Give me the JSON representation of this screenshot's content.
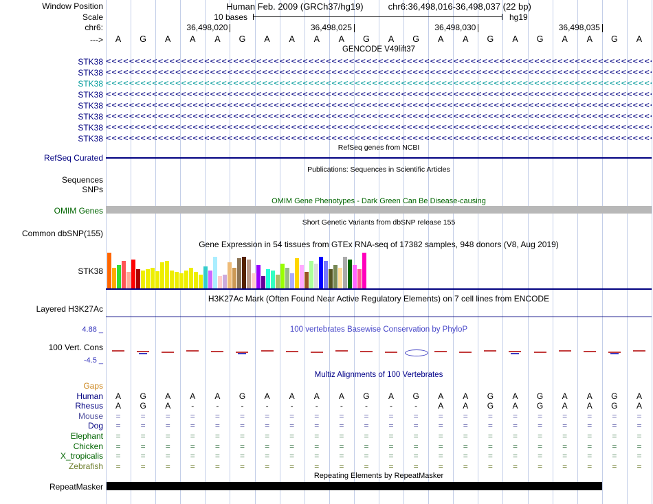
{
  "colors": {
    "navy": "#000080",
    "teal_transcript": "#009a9a",
    "dark_green": "#006400",
    "omim_bar_gray": "#b8b8b8",
    "gridline_blue": "#c3cee8",
    "phylop_title_blue": "#4646c8",
    "phylop_dash_red": "#c23a3a",
    "phylop_mark_blue": "#3a3ac2",
    "gaps_orange": "#cc8822",
    "repeat_black": "#000000"
  },
  "header": {
    "window_position_label": "Window Position",
    "assembly_title": "Human Feb. 2009 (GRCh37/hg19)",
    "position_title": "chr6:36,498,016-36,498,037 (22 bp)",
    "scale_label": "Scale",
    "scale_text": "10 bases",
    "assembly_short": "hg19",
    "chrom_label": "chr6:",
    "strand_label": "--->",
    "coordinate_ticks": [
      {
        "label": "36,498,020",
        "column": 4
      },
      {
        "label": "36,498,025",
        "column": 9
      },
      {
        "label": "36,498,030",
        "column": 14
      },
      {
        "label": "36,498,035",
        "column": 19
      }
    ],
    "bases": [
      "A",
      "G",
      "A",
      "A",
      "A",
      "G",
      "A",
      "A",
      "A",
      "A",
      "G",
      "A",
      "G",
      "A",
      "A",
      "G",
      "A",
      "G",
      "A",
      "A",
      "G",
      "A"
    ]
  },
  "gencode": {
    "title": "GENCODE V49lift37",
    "arrow_char": "<",
    "transcripts": [
      {
        "name": "STK38",
        "color": "#000080"
      },
      {
        "name": "STK38",
        "color": "#000080"
      },
      {
        "name": "STK38",
        "color": "#009a9a"
      },
      {
        "name": "STK38",
        "color": "#000080"
      },
      {
        "name": "STK38",
        "color": "#000080"
      },
      {
        "name": "STK38",
        "color": "#000080"
      },
      {
        "name": "STK38",
        "color": "#000080"
      },
      {
        "name": "STK38",
        "color": "#000080"
      }
    ]
  },
  "refseq": {
    "title": "RefSeq genes from NCBI",
    "label": "RefSeq Curated"
  },
  "publications": {
    "title": "Publications: Sequences in Scientific Articles",
    "sequences_label": "Sequences",
    "snps_label": "SNPs"
  },
  "omim": {
    "title": "OMIM Gene Phenotypes - Dark Green Can Be Disease-causing",
    "label": "OMIM Genes"
  },
  "dbsnp": {
    "title": "Short Genetic Variants from dbSNP release 155",
    "label": "Common dbSNP(155)"
  },
  "gtex": {
    "title": "Gene Expression in 54 tissues from GTEx RNA-seq of 17382 samples, 948 donors (V8, Aug 2019)",
    "label": "STK38"
  },
  "h3k27ac": {
    "title": "H3K27Ac Mark (Often Found Near Active Regulatory Elements) on 7 cell lines from ENCODE",
    "label": "Layered H3K27Ac"
  },
  "conservation": {
    "title": "100 vertebrates Basewise Conservation by PhyloP",
    "label": "100 Vert. Cons",
    "max_label": "4.88 _",
    "min_label": "-4.5 _",
    "blue_mark_columns": [
      1,
      5,
      16,
      20
    ],
    "lens_column": 12
  },
  "multiz": {
    "title": "Multiz Alignments of 100 Vertebrates",
    "species": [
      {
        "name": "Gaps",
        "label_color": "#cc8822"
      },
      {
        "name": "Human",
        "label_color": "#000080",
        "cell_color": "#000000",
        "cells": [
          "A",
          "G",
          "A",
          "A",
          "A",
          "G",
          "A",
          "A",
          "A",
          "A",
          "G",
          "A",
          "G",
          "A",
          "A",
          "G",
          "A",
          "G",
          "A",
          "A",
          "G",
          "A"
        ]
      },
      {
        "name": "Rhesus",
        "label_color": "#000080",
        "cell_color": "#000000",
        "cells": [
          "A",
          "G",
          "A",
          "-",
          "-",
          "-",
          "-",
          "-",
          "-",
          "-",
          "-",
          "-",
          "-",
          "A",
          "A",
          "G",
          "A",
          "G",
          "A",
          "A",
          "G",
          "A"
        ]
      },
      {
        "name": "Mouse",
        "label_color": "#50509e",
        "cell_color": "#6868b0",
        "cells_repeat": "="
      },
      {
        "name": "Dog",
        "label_color": "#000080",
        "cell_color": "#6868b0",
        "cells_repeat": "="
      },
      {
        "name": "Elephant",
        "label_color": "#006400",
        "cell_color": "#55885f",
        "cells_repeat": "="
      },
      {
        "name": "Chicken",
        "label_color": "#006400",
        "cell_color": "#55885f",
        "cells_repeat": "="
      },
      {
        "name": "X_tropicalis",
        "label_color": "#006400",
        "cell_color": "#55885f",
        "cells_repeat": "="
      },
      {
        "name": "Zebrafish",
        "label_color": "#708030",
        "cell_color": "#708030",
        "cells_repeat": "="
      }
    ]
  },
  "repeats": {
    "title": "Repeating Elements by RepeatMasker",
    "label": "RepeatMasker"
  },
  "chart_data": {
    "type": "bar",
    "title": "Gene Expression in 54 tissues from GTEx RNA-seq of 17382 samples, 948 donors (V8, Aug 2019)",
    "gene": "STK38",
    "ylim": [
      0,
      55
    ],
    "values": [
      52,
      30,
      34,
      40,
      24,
      42,
      28,
      26,
      28,
      30,
      25,
      38,
      40,
      26,
      24,
      22,
      26,
      30,
      24,
      20,
      32,
      26,
      46,
      18,
      20,
      38,
      30,
      44,
      46,
      42,
      22,
      34,
      18,
      28,
      26,
      20,
      36,
      30,
      22,
      44,
      34,
      24,
      40,
      36,
      46,
      40,
      28,
      34,
      30,
      46,
      42,
      34,
      28,
      52
    ],
    "colors": [
      "#FF6600",
      "#FFAA00",
      "#33DD33",
      "#FF5555",
      "#FFAA99",
      "#FF0000",
      "#AA0000",
      "#EEEE00",
      "#EEEE00",
      "#EEEE00",
      "#EEEE00",
      "#EEEE00",
      "#EEEE00",
      "#EEEE00",
      "#EEEE00",
      "#EEEE00",
      "#EEEE00",
      "#EEEE00",
      "#EEEE00",
      "#EEEE00",
      "#33CCCC",
      "#CC66FF",
      "#AAEEFF",
      "#FFCCCC",
      "#CCAADD",
      "#EEBB77",
      "#CC9955",
      "#8B7355",
      "#552200",
      "#BB9988",
      "#FFCCCC",
      "#9900FF",
      "#660099",
      "#22FFDD",
      "#33FFC2",
      "#AABB66",
      "#99FF00",
      "#99BB88",
      "#AAAAFF",
      "#FFD700",
      "#FFAAFF",
      "#995522",
      "#AAFF99",
      "#DDDDDD",
      "#0000FF",
      "#7777FF",
      "#555522",
      "#778855",
      "#FFDD99",
      "#AAAAAA",
      "#006600",
      "#FF66FF",
      "#FF5599",
      "#FF00BB"
    ]
  }
}
